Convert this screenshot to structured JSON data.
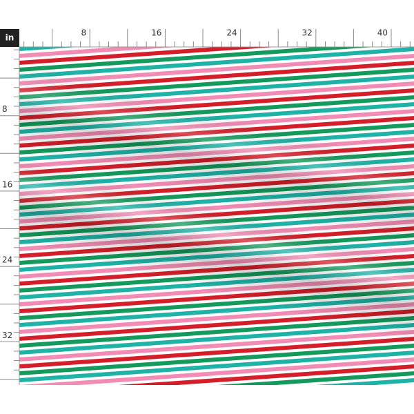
{
  "ruler": {
    "unit": "in",
    "top_labels": [
      "8",
      "16",
      "24",
      "32",
      "40"
    ],
    "left_labels": [
      "8",
      "16",
      "24",
      "32"
    ]
  }
}
